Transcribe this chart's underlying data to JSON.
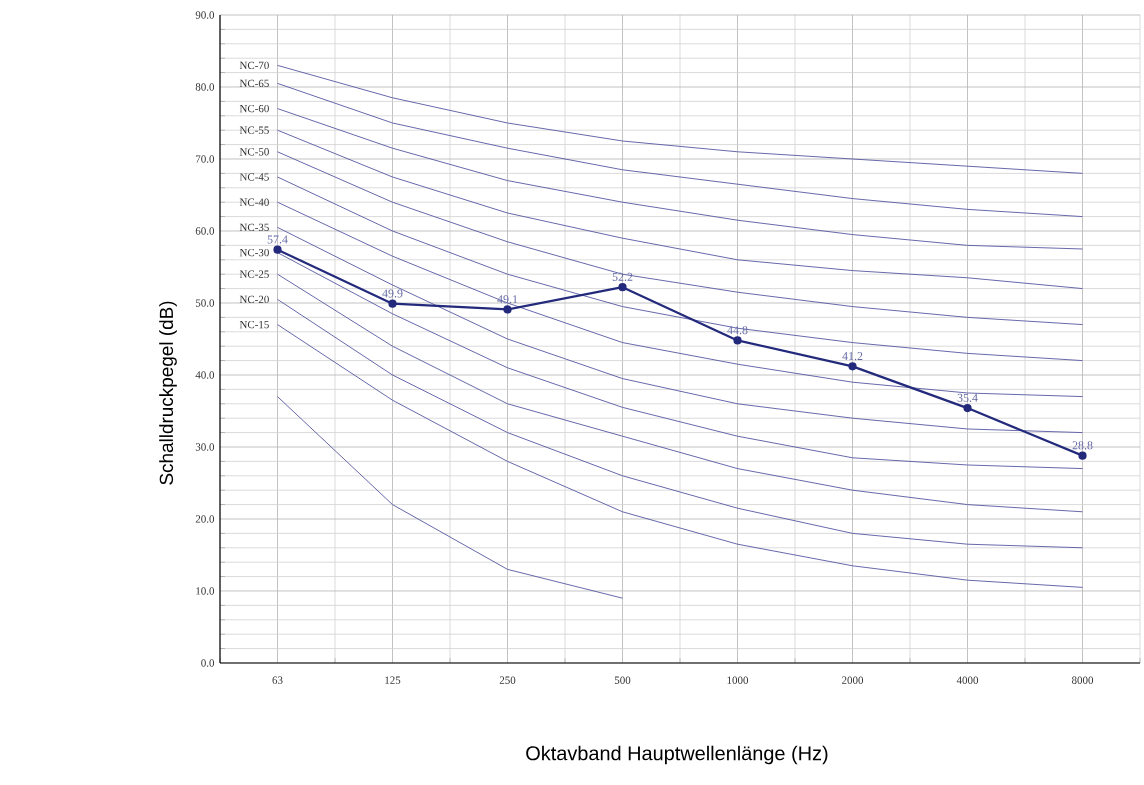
{
  "chart_data": {
    "type": "line",
    "xlabel": "Oktavband Hauptwellenlänge (Hz)",
    "ylabel": "Schalldruckpegel (dB)",
    "categories": [
      "63",
      "125",
      "250",
      "500",
      "1000",
      "2000",
      "4000",
      "8000"
    ],
    "ylim": [
      0,
      90
    ],
    "yticks": [
      {
        "value": 0,
        "label": "0.0"
      },
      {
        "value": 10,
        "label": "10.0"
      },
      {
        "value": 20,
        "label": "20.0"
      },
      {
        "value": 30,
        "label": "30.0"
      },
      {
        "value": 40,
        "label": "40.0"
      },
      {
        "value": 50,
        "label": "50.0"
      },
      {
        "value": 60,
        "label": "60.0"
      },
      {
        "value": 70,
        "label": "70.0"
      },
      {
        "value": 80,
        "label": "80.0"
      },
      {
        "value": 90,
        "label": "90.0"
      }
    ],
    "grid": true,
    "marker": "none",
    "series": [
      {
        "name": "NC-70",
        "color": "#5658a2",
        "values": [
          83,
          78.5,
          75,
          72.5,
          71,
          70,
          69,
          68
        ]
      },
      {
        "name": "NC-65",
        "color": "#5658a2",
        "values": [
          80.5,
          75,
          71.5,
          68.5,
          66.5,
          64.5,
          63,
          62
        ]
      },
      {
        "name": "NC-60",
        "color": "#5658a2",
        "values": [
          77,
          71.5,
          67,
          64,
          61.5,
          59.5,
          58,
          57.5
        ]
      },
      {
        "name": "NC-55",
        "color": "#5658a2",
        "values": [
          74,
          67.5,
          62.5,
          59,
          56,
          54.5,
          53.5,
          52
        ]
      },
      {
        "name": "NC-50",
        "color": "#5658a2",
        "values": [
          71,
          64,
          58.5,
          54,
          51.5,
          49.5,
          48,
          47
        ]
      },
      {
        "name": "NC-45",
        "color": "#5658a2",
        "values": [
          67.5,
          60,
          54,
          49.5,
          46.5,
          44.5,
          43,
          42
        ]
      },
      {
        "name": "NC-40",
        "color": "#5658a2",
        "values": [
          64,
          56.5,
          50,
          44.5,
          41.5,
          39,
          37.5,
          37
        ]
      },
      {
        "name": "NC-35",
        "color": "#5658a2",
        "values": [
          60.5,
          52.5,
          45,
          39.5,
          36,
          34,
          32.5,
          32
        ]
      },
      {
        "name": "NC-30",
        "color": "#5658a2",
        "values": [
          57,
          48.5,
          41,
          35.5,
          31.5,
          28.5,
          27.5,
          27
        ]
      },
      {
        "name": "NC-25",
        "color": "#5658a2",
        "values": [
          54,
          44,
          36,
          31.5,
          27,
          24,
          22,
          21
        ]
      },
      {
        "name": "NC-20",
        "color": "#5658a2",
        "values": [
          50.5,
          40,
          32,
          26,
          21.5,
          18,
          16.5,
          16
        ]
      },
      {
        "name": "NC-15",
        "color": "#5658a2",
        "values": [
          47,
          36.5,
          28,
          21,
          16.5,
          13.5,
          11.5,
          10.5
        ]
      },
      {
        "color": "#5658a2",
        "values": [
          37,
          22,
          13,
          9,
          null,
          null,
          null,
          null
        ]
      },
      {
        "color": "#232a7c",
        "marker": "circle",
        "values": [
          57.4,
          49.9,
          49.1,
          52.2,
          44.8,
          41.2,
          35.4,
          28.8
        ],
        "value_labels": [
          "57.4",
          "49.9",
          "49.1",
          "52.2",
          "44.8",
          "41.2",
          "35.4",
          "28.8"
        ]
      }
    ]
  }
}
